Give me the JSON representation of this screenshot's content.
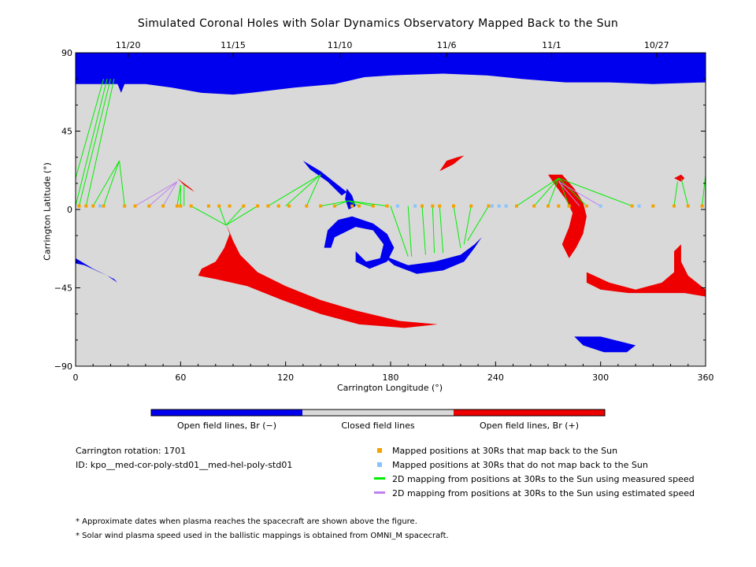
{
  "chart_data": {
    "type": "scatter",
    "title": "Simulated Coronal Holes with Solar Dynamics Observatory Mapped Back to the Sun",
    "xlabel": "Carrington Longitude (°)",
    "ylabel": "Carrington Latitude (°)",
    "xlim": [
      0,
      360
    ],
    "ylim": [
      -90,
      90
    ],
    "x_ticks": [
      "0",
      "60",
      "120",
      "180",
      "240",
      "300",
      "360"
    ],
    "y_ticks": [
      "90",
      "45",
      "0",
      "-45",
      "-90"
    ],
    "top_date_ticks": [
      {
        "label": "11/20",
        "lon": 30
      },
      {
        "label": "11/15",
        "lon": 90
      },
      {
        "label": "11/10",
        "lon": 151
      },
      {
        "label": "11/6",
        "lon": 212
      },
      {
        "label": "11/1",
        "lon": 272
      },
      {
        "label": "10/27",
        "lon": 332
      }
    ],
    "colors": {
      "open_negative": "#0000ee",
      "closed": "#d9d9d9",
      "open_positive": "#ee0000",
      "mapped": "#f5a200",
      "not_mapped": "#87c5ff",
      "measured_line": "#00ee00",
      "estimated_line": "#c080f0"
    },
    "regions": [
      {
        "polarity": "negative",
        "points": [
          [
            0,
            90
          ],
          [
            360,
            90
          ],
          [
            360,
            73
          ],
          [
            330,
            72
          ],
          [
            305,
            73
          ],
          [
            280,
            73
          ],
          [
            255,
            75
          ],
          [
            235,
            77
          ],
          [
            210,
            78
          ],
          [
            180,
            77
          ],
          [
            165,
            76
          ],
          [
            148,
            72
          ],
          [
            125,
            70
          ],
          [
            100,
            67
          ],
          [
            90,
            66
          ],
          [
            72,
            67
          ],
          [
            55,
            70
          ],
          [
            40,
            72
          ],
          [
            28,
            72
          ],
          [
            26,
            67
          ],
          [
            24,
            72
          ],
          [
            0,
            72
          ]
        ]
      },
      {
        "polarity": "negative",
        "points": [
          [
            0,
            -28
          ],
          [
            10,
            -34
          ],
          [
            22,
            -40
          ],
          [
            24,
            -42
          ],
          [
            18,
            -38
          ],
          [
            5,
            -32
          ],
          [
            0,
            -31
          ]
        ]
      },
      {
        "polarity": "negative",
        "points": [
          [
            130,
            28
          ],
          [
            140,
            22
          ],
          [
            150,
            14
          ],
          [
            155,
            10
          ],
          [
            152,
            8
          ],
          [
            144,
            16
          ],
          [
            134,
            23
          ]
        ]
      },
      {
        "polarity": "negative",
        "points": [
          [
            155,
            12
          ],
          [
            158,
            8
          ],
          [
            160,
            2
          ],
          [
            156,
            0
          ],
          [
            154,
            6
          ]
        ]
      },
      {
        "polarity": "negative",
        "points": [
          [
            158,
            -4
          ],
          [
            170,
            -8
          ],
          [
            178,
            -14
          ],
          [
            182,
            -22
          ],
          [
            178,
            -30
          ],
          [
            168,
            -34
          ],
          [
            160,
            -30
          ],
          [
            160,
            -24
          ],
          [
            166,
            -30
          ],
          [
            174,
            -28
          ],
          [
            176,
            -20
          ],
          [
            170,
            -12
          ],
          [
            160,
            -10
          ],
          [
            148,
            -16
          ],
          [
            146,
            -22
          ],
          [
            142,
            -22
          ],
          [
            144,
            -12
          ],
          [
            150,
            -6
          ]
        ]
      },
      {
        "polarity": "negative",
        "points": [
          [
            175,
            -26
          ],
          [
            190,
            -32
          ],
          [
            205,
            -30
          ],
          [
            220,
            -26
          ],
          [
            228,
            -20
          ],
          [
            232,
            -16
          ],
          [
            228,
            -22
          ],
          [
            222,
            -30
          ],
          [
            210,
            -35
          ],
          [
            195,
            -37
          ],
          [
            182,
            -32
          ]
        ]
      },
      {
        "polarity": "negative",
        "points": [
          [
            285,
            -73
          ],
          [
            300,
            -73
          ],
          [
            312,
            -76
          ],
          [
            320,
            -78
          ],
          [
            315,
            -82
          ],
          [
            302,
            -82
          ],
          [
            290,
            -78
          ]
        ]
      },
      {
        "polarity": "positive",
        "points": [
          [
            212,
            28
          ],
          [
            218,
            30
          ],
          [
            222,
            31
          ],
          [
            216,
            26
          ],
          [
            208,
            22
          ]
        ]
      },
      {
        "polarity": "positive",
        "points": [
          [
            58,
            18
          ],
          [
            66,
            12
          ],
          [
            72,
            6
          ],
          [
            74,
            4
          ],
          [
            68,
            10
          ],
          [
            62,
            14
          ]
        ]
      },
      {
        "polarity": "positive",
        "points": [
          [
            72,
            -34
          ],
          [
            80,
            -30
          ],
          [
            85,
            -22
          ],
          [
            88,
            -14
          ],
          [
            86,
            -8
          ],
          [
            90,
            -18
          ],
          [
            94,
            -26
          ],
          [
            104,
            -36
          ],
          [
            120,
            -44
          ],
          [
            140,
            -52
          ],
          [
            160,
            -58
          ],
          [
            185,
            -64
          ],
          [
            207,
            -66
          ],
          [
            188,
            -68
          ],
          [
            162,
            -66
          ],
          [
            140,
            -60
          ],
          [
            118,
            -52
          ],
          [
            98,
            -44
          ],
          [
            80,
            -40
          ],
          [
            70,
            -38
          ]
        ]
      },
      {
        "polarity": "positive",
        "points": [
          [
            270,
            20
          ],
          [
            278,
            20
          ],
          [
            285,
            12
          ],
          [
            290,
            4
          ],
          [
            292,
            -4
          ],
          [
            290,
            -14
          ],
          [
            286,
            -22
          ],
          [
            282,
            -28
          ],
          [
            278,
            -20
          ],
          [
            282,
            -10
          ],
          [
            284,
            -2
          ],
          [
            280,
            6
          ],
          [
            274,
            14
          ]
        ]
      },
      {
        "polarity": "positive",
        "points": [
          [
            292,
            -36
          ],
          [
            305,
            -42
          ],
          [
            320,
            -46
          ],
          [
            335,
            -42
          ],
          [
            342,
            -36
          ],
          [
            342,
            -24
          ],
          [
            346,
            -20
          ],
          [
            346,
            -30
          ],
          [
            350,
            -38
          ],
          [
            360,
            -46
          ],
          [
            360,
            -50
          ],
          [
            348,
            -48
          ],
          [
            332,
            -48
          ],
          [
            316,
            -48
          ],
          [
            300,
            -46
          ],
          [
            292,
            -42
          ]
        ]
      },
      {
        "polarity": "positive",
        "points": [
          [
            342,
            18
          ],
          [
            346,
            20
          ],
          [
            348,
            18
          ],
          [
            346,
            16
          ]
        ]
      }
    ],
    "mapped_positions_lon": [
      2,
      6,
      10,
      16,
      28,
      34,
      42,
      50,
      58,
      60,
      66,
      76,
      82,
      88,
      96,
      104,
      110,
      116,
      122,
      132,
      140,
      148,
      158,
      162,
      170,
      178,
      198,
      204,
      208,
      216,
      226,
      236,
      252,
      262,
      270,
      276,
      282,
      292,
      318,
      330,
      342,
      350,
      358
    ],
    "not_mapped_positions_lon": [
      14,
      184,
      194,
      238,
      242,
      246,
      300,
      322
    ],
    "measured_mappings": [
      {
        "from": [
          0,
          2
        ],
        "to": [
          18,
          75
        ]
      },
      {
        "from": [
          2,
          2
        ],
        "to": [
          20,
          75
        ]
      },
      {
        "from": [
          6,
          2
        ],
        "to": [
          22,
          75
        ]
      },
      {
        "from": [
          0,
          18
        ],
        "to": [
          16,
          75
        ]
      },
      {
        "from": [
          10,
          2
        ],
        "to": [
          25,
          28
        ]
      },
      {
        "from": [
          16,
          2
        ],
        "to": [
          25,
          28
        ]
      },
      {
        "from": [
          28,
          2
        ],
        "to": [
          25,
          28
        ]
      },
      {
        "from": [
          58,
          2
        ],
        "to": [
          60,
          14
        ]
      },
      {
        "from": [
          60,
          2
        ],
        "to": [
          60,
          14
        ]
      },
      {
        "from": [
          62,
          2
        ],
        "to": [
          62,
          14
        ]
      },
      {
        "from": [
          66,
          2
        ],
        "to": [
          86,
          -9
        ]
      },
      {
        "from": [
          82,
          2
        ],
        "to": [
          86,
          -9
        ]
      },
      {
        "from": [
          96,
          2
        ],
        "to": [
          86,
          -9
        ]
      },
      {
        "from": [
          104,
          2
        ],
        "to": [
          86,
          -9
        ]
      },
      {
        "from": [
          110,
          2
        ],
        "to": [
          140,
          20
        ]
      },
      {
        "from": [
          120,
          2
        ],
        "to": [
          140,
          20
        ]
      },
      {
        "from": [
          132,
          2
        ],
        "to": [
          140,
          20
        ]
      },
      {
        "from": [
          140,
          2
        ],
        "to": [
          156,
          5
        ]
      },
      {
        "from": [
          148,
          2
        ],
        "to": [
          156,
          5
        ]
      },
      {
        "from": [
          162,
          2
        ],
        "to": [
          156,
          5
        ]
      },
      {
        "from": [
          170,
          2
        ],
        "to": [
          156,
          5
        ]
      },
      {
        "from": [
          178,
          2
        ],
        "to": [
          156,
          5
        ]
      },
      {
        "from": [
          180,
          2
        ],
        "to": [
          190,
          -27
        ]
      },
      {
        "from": [
          190,
          2
        ],
        "to": [
          192,
          -27
        ]
      },
      {
        "from": [
          198,
          2
        ],
        "to": [
          200,
          -26
        ]
      },
      {
        "from": [
          204,
          2
        ],
        "to": [
          205,
          -25
        ]
      },
      {
        "from": [
          208,
          2
        ],
        "to": [
          210,
          -25
        ]
      },
      {
        "from": [
          216,
          2
        ],
        "to": [
          220,
          -22
        ]
      },
      {
        "from": [
          226,
          2
        ],
        "to": [
          222,
          -20
        ]
      },
      {
        "from": [
          236,
          2
        ],
        "to": [
          224,
          -18
        ]
      },
      {
        "from": [
          252,
          2
        ],
        "to": [
          276,
          18
        ]
      },
      {
        "from": [
          262,
          2
        ],
        "to": [
          276,
          18
        ]
      },
      {
        "from": [
          270,
          2
        ],
        "to": [
          276,
          18
        ]
      },
      {
        "from": [
          282,
          2
        ],
        "to": [
          276,
          18
        ]
      },
      {
        "from": [
          292,
          2
        ],
        "to": [
          276,
          18
        ]
      },
      {
        "from": [
          318,
          2
        ],
        "to": [
          276,
          18
        ]
      },
      {
        "from": [
          342,
          2
        ],
        "to": [
          344,
          16
        ]
      },
      {
        "from": [
          350,
          2
        ],
        "to": [
          346,
          18
        ]
      },
      {
        "from": [
          358,
          2
        ],
        "to": [
          360,
          20
        ]
      }
    ],
    "estimated_mappings": [
      {
        "from": [
          34,
          2
        ],
        "to": [
          58,
          16
        ]
      },
      {
        "from": [
          42,
          2
        ],
        "to": [
          58,
          16
        ]
      },
      {
        "from": [
          50,
          2
        ],
        "to": [
          58,
          16
        ]
      },
      {
        "from": [
          288,
          2
        ],
        "to": [
          276,
          16
        ]
      },
      {
        "from": [
          300,
          2
        ],
        "to": [
          276,
          16
        ]
      }
    ],
    "colorbar": {
      "labels": [
        "Open field lines, Br (−)",
        "Closed field lines",
        "Open field lines, Br (+)"
      ]
    },
    "legend": [
      {
        "label": "Mapped positions at 30Rs that map back to the Sun",
        "symbol": "square",
        "color": "#f5a200"
      },
      {
        "label": "Mapped positions at 30Rs that do not map back to the Sun",
        "symbol": "square",
        "color": "#87c5ff"
      },
      {
        "label": "2D mapping from positions at 30Rs to the Sun using measured speed",
        "symbol": "line",
        "color": "#00ee00"
      },
      {
        "label": "2D mapping from positions at 30Rs to the Sun using estimated speed",
        "symbol": "line",
        "color": "#c080f0"
      }
    ],
    "info": {
      "rotation": "Carrington rotation: 1701",
      "id": "ID: kpo__med-cor-poly-std01__med-hel-poly-std01"
    },
    "footnotes": [
      "* Approximate dates when plasma reaches the spacecraft are shown above the figure.",
      "* Solar wind plasma speed used in the ballistic mappings is obtained from OMNI_M spacecraft."
    ]
  }
}
